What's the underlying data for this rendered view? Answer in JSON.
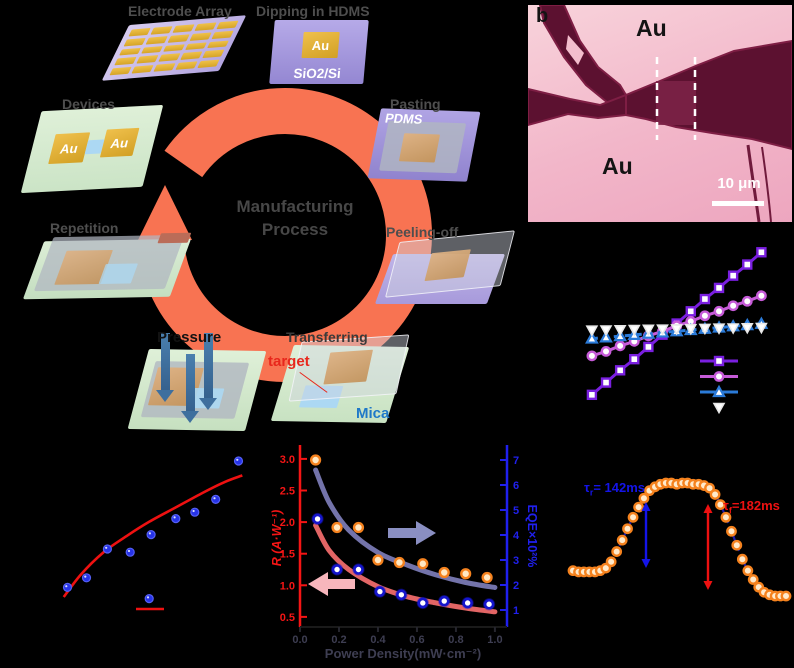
{
  "panel_a": {
    "title_line1": "Manufacturing",
    "title_line2": "Process",
    "ring_color": "#F87352",
    "title_color": "#474747",
    "labels": {
      "electrode_array": "Electrode Array",
      "dipping": "Dipping in HDMS",
      "pasting": "Pasting",
      "peeling": "Peeling-off",
      "transferring": "Transferring",
      "pressure": "Pressure",
      "repetition": "Repetition",
      "devices": "Devices"
    },
    "tags": {
      "au": "Au",
      "sio2": "SiO2/Si",
      "pdms": "PDMS",
      "target": "target",
      "mica": "Mica",
      "au_left": "Au",
      "au_right": "Au"
    },
    "target_color": "#E8271C",
    "mica_color": "#1F78C8"
  },
  "panel_b": {
    "label": "b",
    "au_top": "Au",
    "au_bottom": "Au",
    "scale_bar": "10 μm"
  },
  "annotations_f": {
    "tau_rise_sym": "τ",
    "tau_rise_sub": "r",
    "tau_rise_val": "= 142ms",
    "tau_fall_sym": "τ",
    "tau_fall_sub": "f",
    "tau_fall_val": "=182ms",
    "rise_color": "#1414E8",
    "fall_color": "#EE1111"
  },
  "chart_data": [
    {
      "id": "iv-curves",
      "type": "line",
      "xlim": [
        -1,
        1
      ],
      "ylim": [
        -0.88,
        0.88
      ],
      "series": [
        {
          "name": "series-1",
          "color": "#7A1FE0",
          "marker": "square",
          "x": [
            -0.7,
            -0.575,
            -0.45,
            -0.325,
            -0.2,
            -0.075,
            0.05,
            0.175,
            0.3,
            0.425,
            0.55,
            0.675,
            0.8
          ],
          "y": [
            -0.6,
            -0.49,
            -0.38,
            -0.28,
            -0.17,
            -0.06,
            0.04,
            0.15,
            0.26,
            0.36,
            0.47,
            0.57,
            0.68
          ]
        },
        {
          "name": "series-2",
          "color": "#C65BD8",
          "marker": "circle",
          "x": [
            -0.7,
            -0.575,
            -0.45,
            -0.325,
            -0.2,
            -0.075,
            0.05,
            0.175,
            0.3,
            0.425,
            0.55,
            0.675,
            0.8
          ],
          "y": [
            -0.25,
            -0.21,
            -0.16,
            -0.12,
            -0.07,
            -0.03,
            0.02,
            0.06,
            0.11,
            0.15,
            0.2,
            0.24,
            0.29
          ]
        },
        {
          "name": "series-3",
          "color": "#2B7BD9",
          "marker": "triangle-up",
          "dashed": true,
          "x": [
            -0.7,
            -0.575,
            -0.45,
            -0.325,
            -0.2,
            -0.075,
            0.05,
            0.175,
            0.3,
            0.425,
            0.55,
            0.675,
            0.8
          ],
          "y": [
            -0.095,
            -0.084,
            -0.073,
            -0.062,
            -0.051,
            -0.04,
            -0.029,
            -0.018,
            -0.007,
            0.004,
            0.015,
            0.026,
            0.038
          ]
        },
        {
          "name": "series-4",
          "color": "#E8E8E8",
          "marker": "triangle-down",
          "line": false,
          "x": [
            -0.7,
            -0.575,
            -0.45,
            -0.325,
            -0.2,
            -0.075,
            0.05,
            0.175,
            0.3,
            0.425,
            0.55,
            0.675,
            0.8
          ],
          "y": [
            -0.02,
            -0.018,
            -0.016,
            -0.014,
            -0.012,
            -0.01,
            -0.008,
            -0.006,
            -0.004,
            -0.002,
            0,
            0.002,
            0.004
          ]
        }
      ],
      "legend": [
        {
          "marker": "square",
          "color": "#7A1FE0",
          "line": true
        },
        {
          "marker": "circle",
          "color": "#C65BD8",
          "line": true
        },
        {
          "marker": "triangle-up",
          "color": "#2B7BD9",
          "line": true
        },
        {
          "marker": "triangle-down",
          "color": "#E8E8E8",
          "line": false
        }
      ]
    },
    {
      "id": "scatter-fit",
      "type": "scatter",
      "xlim": [
        0,
        1
      ],
      "ylim": [
        0,
        1
      ],
      "point_color": "#2633E8",
      "points": {
        "x": [
          0.05,
          0.15,
          0.26,
          0.38,
          0.48,
          0.49,
          0.62,
          0.72,
          0.83,
          0.95
        ],
        "y": [
          0.16,
          0.22,
          0.4,
          0.38,
          0.09,
          0.49,
          0.59,
          0.63,
          0.71,
          0.95
        ]
      },
      "fit": {
        "color": "#EE1111",
        "x": [
          0.03,
          0.12,
          0.24,
          0.36,
          0.48,
          0.62,
          0.76,
          0.88,
          0.97
        ],
        "y": [
          0.1,
          0.24,
          0.38,
          0.48,
          0.57,
          0.66,
          0.75,
          0.82,
          0.86
        ]
      },
      "legend_line": {
        "color": "#EE1111"
      }
    },
    {
      "id": "power-density",
      "type": "scatter",
      "xlabel": "Power Density(mW·cm⁻²)",
      "ylabel_left": "R (A·W⁻¹)",
      "ylabel_right": "EQE×10²%",
      "axis_left_color": "#F51515",
      "axis_right_color": "#2020EE",
      "tick_text_color": "#3E3E52",
      "xticks": [
        "0.0",
        "0.2",
        "0.4",
        "0.6",
        "0.8",
        "1.0"
      ],
      "yticks_left": [
        "3.0",
        "2.5",
        "2.0",
        "1.5",
        "1.0",
        "0.5"
      ],
      "yticks_right": [
        "7",
        "6",
        "5",
        "4",
        "3",
        "2",
        "1"
      ],
      "xlim": [
        0,
        1.062
      ],
      "ylim_left": [
        0.34,
        3.22
      ],
      "ylim_right": [
        0.32,
        7.6
      ],
      "series": [
        {
          "name": "responsivity",
          "axis": "left",
          "marker": "dot-navy",
          "color": "#1515CC",
          "x": [
            0.09,
            0.19,
            0.3,
            0.41,
            0.52,
            0.63,
            0.74,
            0.86,
            0.97
          ],
          "values": [
            2.05,
            1.25,
            1.25,
            0.9,
            0.85,
            0.72,
            0.75,
            0.72,
            0.7
          ]
        },
        {
          "name": "eqe",
          "axis": "right",
          "marker": "dot-orange",
          "color": "#F5821E",
          "x": [
            0.08,
            0.19,
            0.3,
            0.4,
            0.51,
            0.63,
            0.74,
            0.85,
            0.96
          ],
          "values": [
            7.0,
            4.3,
            4.3,
            3.0,
            2.9,
            2.85,
            2.5,
            2.45,
            2.3
          ]
        }
      ],
      "fits": [
        {
          "axis": "left",
          "color": "#F56E6E",
          "x": [
            0.08,
            0.15,
            0.25,
            0.4,
            0.55,
            0.7,
            0.85,
            1.0
          ],
          "values": [
            1.95,
            1.55,
            1.25,
            0.98,
            0.82,
            0.72,
            0.64,
            0.58
          ]
        },
        {
          "axis": "right",
          "color": "#7D7DB8",
          "x": [
            0.08,
            0.15,
            0.25,
            0.4,
            0.55,
            0.7,
            0.85,
            1.0
          ],
          "values": [
            6.6,
            5.3,
            4.2,
            3.3,
            2.8,
            2.4,
            2.1,
            1.9
          ]
        }
      ],
      "arrow_left_color": "#F7B6BC",
      "arrow_right_color": "#8A8FC2"
    },
    {
      "id": "time-response",
      "type": "line",
      "xlim": [
        0,
        1
      ],
      "ylim": [
        0,
        1.134
      ],
      "marker_color": "#F5821E",
      "fit_color": "#1A1AA6",
      "tau_rise": "142ms",
      "tau_fall": "182ms",
      "x": [
        0,
        0.026,
        0.051,
        0.077,
        0.103,
        0.128,
        0.154,
        0.179,
        0.205,
        0.231,
        0.256,
        0.282,
        0.308,
        0.333,
        0.359,
        0.385,
        0.41,
        0.436,
        0.462,
        0.487,
        0.513,
        0.538,
        0.564,
        0.59,
        0.615,
        0.641,
        0.667,
        0.692,
        0.718,
        0.744,
        0.769,
        0.795,
        0.821,
        0.846,
        0.872,
        0.897,
        0.923,
        0.949,
        0.974,
        1
      ],
      "y": [
        0.31,
        0.3,
        0.3,
        0.3,
        0.3,
        0.31,
        0.33,
        0.38,
        0.46,
        0.55,
        0.64,
        0.73,
        0.81,
        0.88,
        0.94,
        0.97,
        0.99,
        1.0,
        1.0,
        0.99,
        1.0,
        1.0,
        0.99,
        0.99,
        0.98,
        0.96,
        0.91,
        0.83,
        0.73,
        0.62,
        0.51,
        0.4,
        0.31,
        0.24,
        0.18,
        0.14,
        0.12,
        0.11,
        0.11,
        0.11
      ]
    }
  ]
}
